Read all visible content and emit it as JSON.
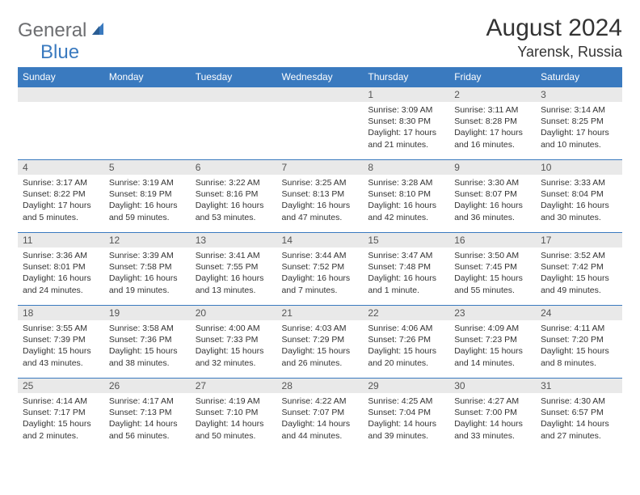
{
  "logo": {
    "general": "General",
    "blue": "Blue"
  },
  "title": "August 2024",
  "location": "Yarensk, Russia",
  "header_bg": "#3a7abf",
  "dayHeaders": [
    "Sunday",
    "Monday",
    "Tuesday",
    "Wednesday",
    "Thursday",
    "Friday",
    "Saturday"
  ],
  "weeks": [
    [
      null,
      null,
      null,
      null,
      {
        "n": "1",
        "sr": "Sunrise: 3:09 AM",
        "ss": "Sunset: 8:30 PM",
        "d1": "Daylight: 17 hours",
        "d2": "and 21 minutes."
      },
      {
        "n": "2",
        "sr": "Sunrise: 3:11 AM",
        "ss": "Sunset: 8:28 PM",
        "d1": "Daylight: 17 hours",
        "d2": "and 16 minutes."
      },
      {
        "n": "3",
        "sr": "Sunrise: 3:14 AM",
        "ss": "Sunset: 8:25 PM",
        "d1": "Daylight: 17 hours",
        "d2": "and 10 minutes."
      }
    ],
    [
      {
        "n": "4",
        "sr": "Sunrise: 3:17 AM",
        "ss": "Sunset: 8:22 PM",
        "d1": "Daylight: 17 hours",
        "d2": "and 5 minutes."
      },
      {
        "n": "5",
        "sr": "Sunrise: 3:19 AM",
        "ss": "Sunset: 8:19 PM",
        "d1": "Daylight: 16 hours",
        "d2": "and 59 minutes."
      },
      {
        "n": "6",
        "sr": "Sunrise: 3:22 AM",
        "ss": "Sunset: 8:16 PM",
        "d1": "Daylight: 16 hours",
        "d2": "and 53 minutes."
      },
      {
        "n": "7",
        "sr": "Sunrise: 3:25 AM",
        "ss": "Sunset: 8:13 PM",
        "d1": "Daylight: 16 hours",
        "d2": "and 47 minutes."
      },
      {
        "n": "8",
        "sr": "Sunrise: 3:28 AM",
        "ss": "Sunset: 8:10 PM",
        "d1": "Daylight: 16 hours",
        "d2": "and 42 minutes."
      },
      {
        "n": "9",
        "sr": "Sunrise: 3:30 AM",
        "ss": "Sunset: 8:07 PM",
        "d1": "Daylight: 16 hours",
        "d2": "and 36 minutes."
      },
      {
        "n": "10",
        "sr": "Sunrise: 3:33 AM",
        "ss": "Sunset: 8:04 PM",
        "d1": "Daylight: 16 hours",
        "d2": "and 30 minutes."
      }
    ],
    [
      {
        "n": "11",
        "sr": "Sunrise: 3:36 AM",
        "ss": "Sunset: 8:01 PM",
        "d1": "Daylight: 16 hours",
        "d2": "and 24 minutes."
      },
      {
        "n": "12",
        "sr": "Sunrise: 3:39 AM",
        "ss": "Sunset: 7:58 PM",
        "d1": "Daylight: 16 hours",
        "d2": "and 19 minutes."
      },
      {
        "n": "13",
        "sr": "Sunrise: 3:41 AM",
        "ss": "Sunset: 7:55 PM",
        "d1": "Daylight: 16 hours",
        "d2": "and 13 minutes."
      },
      {
        "n": "14",
        "sr": "Sunrise: 3:44 AM",
        "ss": "Sunset: 7:52 PM",
        "d1": "Daylight: 16 hours",
        "d2": "and 7 minutes."
      },
      {
        "n": "15",
        "sr": "Sunrise: 3:47 AM",
        "ss": "Sunset: 7:48 PM",
        "d1": "Daylight: 16 hours",
        "d2": "and 1 minute."
      },
      {
        "n": "16",
        "sr": "Sunrise: 3:50 AM",
        "ss": "Sunset: 7:45 PM",
        "d1": "Daylight: 15 hours",
        "d2": "and 55 minutes."
      },
      {
        "n": "17",
        "sr": "Sunrise: 3:52 AM",
        "ss": "Sunset: 7:42 PM",
        "d1": "Daylight: 15 hours",
        "d2": "and 49 minutes."
      }
    ],
    [
      {
        "n": "18",
        "sr": "Sunrise: 3:55 AM",
        "ss": "Sunset: 7:39 PM",
        "d1": "Daylight: 15 hours",
        "d2": "and 43 minutes."
      },
      {
        "n": "19",
        "sr": "Sunrise: 3:58 AM",
        "ss": "Sunset: 7:36 PM",
        "d1": "Daylight: 15 hours",
        "d2": "and 38 minutes."
      },
      {
        "n": "20",
        "sr": "Sunrise: 4:00 AM",
        "ss": "Sunset: 7:33 PM",
        "d1": "Daylight: 15 hours",
        "d2": "and 32 minutes."
      },
      {
        "n": "21",
        "sr": "Sunrise: 4:03 AM",
        "ss": "Sunset: 7:29 PM",
        "d1": "Daylight: 15 hours",
        "d2": "and 26 minutes."
      },
      {
        "n": "22",
        "sr": "Sunrise: 4:06 AM",
        "ss": "Sunset: 7:26 PM",
        "d1": "Daylight: 15 hours",
        "d2": "and 20 minutes."
      },
      {
        "n": "23",
        "sr": "Sunrise: 4:09 AM",
        "ss": "Sunset: 7:23 PM",
        "d1": "Daylight: 15 hours",
        "d2": "and 14 minutes."
      },
      {
        "n": "24",
        "sr": "Sunrise: 4:11 AM",
        "ss": "Sunset: 7:20 PM",
        "d1": "Daylight: 15 hours",
        "d2": "and 8 minutes."
      }
    ],
    [
      {
        "n": "25",
        "sr": "Sunrise: 4:14 AM",
        "ss": "Sunset: 7:17 PM",
        "d1": "Daylight: 15 hours",
        "d2": "and 2 minutes."
      },
      {
        "n": "26",
        "sr": "Sunrise: 4:17 AM",
        "ss": "Sunset: 7:13 PM",
        "d1": "Daylight: 14 hours",
        "d2": "and 56 minutes."
      },
      {
        "n": "27",
        "sr": "Sunrise: 4:19 AM",
        "ss": "Sunset: 7:10 PM",
        "d1": "Daylight: 14 hours",
        "d2": "and 50 minutes."
      },
      {
        "n": "28",
        "sr": "Sunrise: 4:22 AM",
        "ss": "Sunset: 7:07 PM",
        "d1": "Daylight: 14 hours",
        "d2": "and 44 minutes."
      },
      {
        "n": "29",
        "sr": "Sunrise: 4:25 AM",
        "ss": "Sunset: 7:04 PM",
        "d1": "Daylight: 14 hours",
        "d2": "and 39 minutes."
      },
      {
        "n": "30",
        "sr": "Sunrise: 4:27 AM",
        "ss": "Sunset: 7:00 PM",
        "d1": "Daylight: 14 hours",
        "d2": "and 33 minutes."
      },
      {
        "n": "31",
        "sr": "Sunrise: 4:30 AM",
        "ss": "Sunset: 6:57 PM",
        "d1": "Daylight: 14 hours",
        "d2": "and 27 minutes."
      }
    ]
  ]
}
